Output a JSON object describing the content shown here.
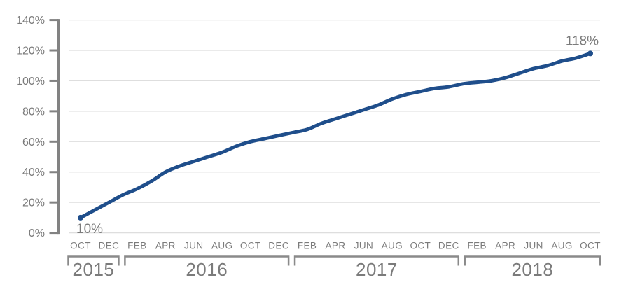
{
  "chart_data": {
    "type": "line",
    "title": "",
    "xlabel": "",
    "ylabel": "",
    "x": [
      "Oct 2015",
      "Nov 2015",
      "Dec 2015",
      "Jan 2016",
      "Feb 2016",
      "Mar 2016",
      "Apr 2016",
      "May 2016",
      "Jun 2016",
      "Jul 2016",
      "Aug 2016",
      "Sep 2016",
      "Oct 2016",
      "Nov 2016",
      "Dec 2016",
      "Jan 2017",
      "Feb 2017",
      "Mar 2017",
      "Apr 2017",
      "May 2017",
      "Jun 2017",
      "Jul 2017",
      "Aug 2017",
      "Sep 2017",
      "Oct 2017",
      "Nov 2017",
      "Dec 2017",
      "Jan 2018",
      "Feb 2018",
      "Mar 2018",
      "Apr 2018",
      "May 2018",
      "Jun 2018",
      "Jul 2018",
      "Aug 2018",
      "Sep 2018",
      "Oct 2018"
    ],
    "values": [
      10,
      15,
      20,
      25,
      29,
      34,
      40,
      44,
      47,
      50,
      53,
      57,
      60,
      62,
      64,
      66,
      68,
      72,
      75,
      78,
      81,
      84,
      88,
      91,
      93,
      95,
      96,
      98,
      99,
      100,
      102,
      105,
      108,
      110,
      113,
      115,
      118
    ],
    "unit": "%",
    "ylim": [
      0,
      140
    ],
    "y_step": 20,
    "y_tick_labels": [
      "0%",
      "20%",
      "40%",
      "60%",
      "80%",
      "100%",
      "120%",
      "140%"
    ],
    "x_tick_labels": [
      "OCT",
      "DEC",
      "FEB",
      "APR",
      "JUN",
      "AUG",
      "OCT",
      "DEC",
      "FEB",
      "APR",
      "JUN",
      "AUG",
      "OCT",
      "DEC",
      "FEB",
      "APR",
      "JUN",
      "AUG",
      "OCT"
    ],
    "x_tick_month_indices": [
      0,
      2,
      4,
      6,
      8,
      10,
      12,
      14,
      16,
      18,
      20,
      22,
      24,
      26,
      28,
      30,
      32,
      34,
      36
    ],
    "year_groups": [
      {
        "label": "2015",
        "first_tick": 0,
        "last_tick": 1
      },
      {
        "label": "2016",
        "first_tick": 2,
        "last_tick": 7
      },
      {
        "label": "2017",
        "first_tick": 8,
        "last_tick": 13
      },
      {
        "label": "2018",
        "first_tick": 14,
        "last_tick": 18
      }
    ],
    "point_labels": {
      "first": "10%",
      "last": "118%"
    },
    "grid": true,
    "legend": false,
    "line_color": "#1f4e8b",
    "axis_color": "#828282",
    "bracket_color": "#8a8a8a",
    "gridline_color": "#dedede",
    "text_color": "#7b7b7b"
  }
}
